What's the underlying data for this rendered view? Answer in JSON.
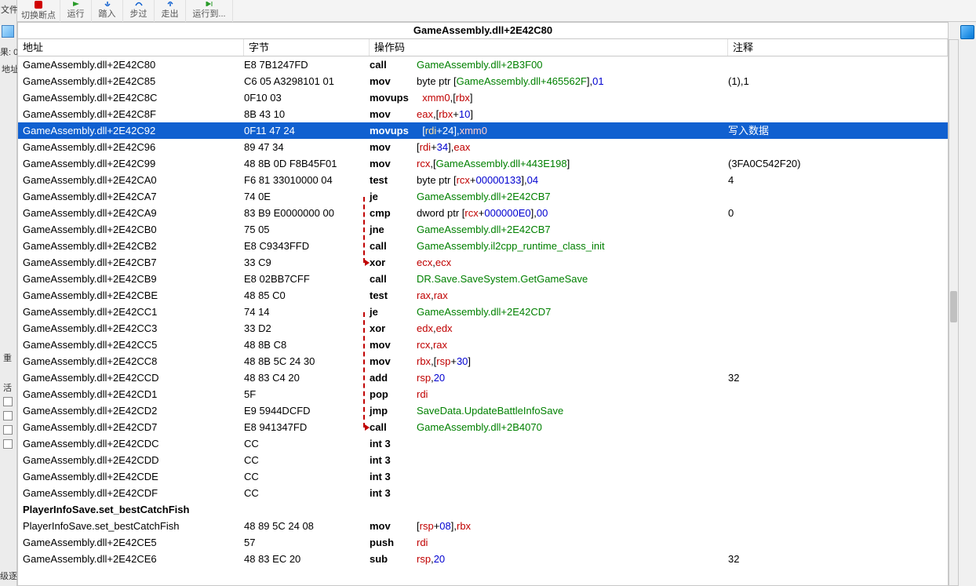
{
  "toolbar": {
    "file_label": "文件",
    "toggle_bp_label": "切换断点",
    "run_label": "运行",
    "step_into_label": "踏入",
    "step_over_label": "步过",
    "step_out_label": "走出",
    "run_to_label": "运行到..."
  },
  "left_strip": {
    "result_label": "果: 0",
    "addr_label": "地址",
    "chong_label": "重",
    "huo_label": "活",
    "ji_label": "级逐"
  },
  "title": "GameAssembly.dll+2E42C80",
  "headers": {
    "address": "地址",
    "bytes": "字节",
    "opcode": "操作码",
    "comment": "注释"
  },
  "col_widths": {
    "address": 288,
    "bytes": 160,
    "opcode": 60,
    "comment": 280
  },
  "selected_index": 4,
  "selected_comment": "写入数据",
  "colors": {
    "green": "#008000",
    "red": "#c00000",
    "blue": "#0000d0",
    "black": "#000000",
    "selection": "#1060d0"
  },
  "rows": [
    {
      "addr": "GameAssembly.dll+2E42C80",
      "bytes": "E8 7B1247FD",
      "op": "call",
      "operands": [
        {
          "t": "GameAssembly.dll+2B3F00",
          "c": "green"
        }
      ],
      "comment": ""
    },
    {
      "addr": "GameAssembly.dll+2E42C85",
      "bytes": "C6 05 A3298101 01",
      "op": "mov",
      "operands": [
        {
          "t": "byte ptr [",
          "c": "black"
        },
        {
          "t": "GameAssembly.dll+465562F",
          "c": "green"
        },
        {
          "t": "],",
          "c": "black"
        },
        {
          "t": "01",
          "c": "blue"
        }
      ],
      "comment": "(1),1"
    },
    {
      "addr": "GameAssembly.dll+2E42C8C",
      "bytes": "0F10 03",
      "op": "movups",
      "operands": [
        {
          "t": "  xmm0",
          "c": "red"
        },
        {
          "t": ",[",
          "c": "black"
        },
        {
          "t": "rbx",
          "c": "red"
        },
        {
          "t": "]",
          "c": "black"
        }
      ],
      "comment": ""
    },
    {
      "addr": "GameAssembly.dll+2E42C8F",
      "bytes": "8B 43 10",
      "op": "mov",
      "operands": [
        {
          "t": "eax",
          "c": "red"
        },
        {
          "t": ",[",
          "c": "black"
        },
        {
          "t": "rbx",
          "c": "red"
        },
        {
          "t": "+",
          "c": "black"
        },
        {
          "t": "10",
          "c": "blue"
        },
        {
          "t": "]",
          "c": "black"
        }
      ],
      "comment": ""
    },
    {
      "addr": "GameAssembly.dll+2E42C92",
      "bytes": "0F11 47 24",
      "op": "movups",
      "operands": [
        {
          "t": "  [",
          "c": "black"
        },
        {
          "t": "rdi",
          "c": "red"
        },
        {
          "t": "+",
          "c": "black"
        },
        {
          "t": "24",
          "c": "blue"
        },
        {
          "t": "],",
          "c": "black"
        },
        {
          "t": "xmm0",
          "c": "sel2"
        }
      ],
      "comment": "写入数据"
    },
    {
      "addr": "GameAssembly.dll+2E42C96",
      "bytes": "89 47 34",
      "op": "mov",
      "operands": [
        {
          "t": "[",
          "c": "black"
        },
        {
          "t": "rdi",
          "c": "red"
        },
        {
          "t": "+",
          "c": "black"
        },
        {
          "t": "34",
          "c": "blue"
        },
        {
          "t": "],",
          "c": "black"
        },
        {
          "t": "eax",
          "c": "red"
        }
      ],
      "comment": ""
    },
    {
      "addr": "GameAssembly.dll+2E42C99",
      "bytes": "48 8B 0D F8B45F01",
      "op": "mov",
      "operands": [
        {
          "t": "rcx",
          "c": "red"
        },
        {
          "t": ",[",
          "c": "black"
        },
        {
          "t": "GameAssembly.dll+443E198",
          "c": "green"
        },
        {
          "t": "]",
          "c": "black"
        }
      ],
      "comment": "(3FA0C542F20)"
    },
    {
      "addr": "GameAssembly.dll+2E42CA0",
      "bytes": "F6 81 33010000 04",
      "op": "test",
      "operands": [
        {
          "t": "byte ptr [",
          "c": "black"
        },
        {
          "t": "rcx",
          "c": "red"
        },
        {
          "t": "+",
          "c": "black"
        },
        {
          "t": "00000133",
          "c": "blue"
        },
        {
          "t": "],",
          "c": "black"
        },
        {
          "t": "04",
          "c": "blue"
        }
      ],
      "comment": "4"
    },
    {
      "addr": "GameAssembly.dll+2E42CA7",
      "bytes": "74 0E",
      "op": "je",
      "operands": [
        {
          "t": "GameAssembly.dll+2E42CB7",
          "c": "green"
        }
      ],
      "comment": ""
    },
    {
      "addr": "GameAssembly.dll+2E42CA9",
      "bytes": "83 B9 E0000000 00",
      "op": "cmp",
      "operands": [
        {
          "t": "dword ptr [",
          "c": "black"
        },
        {
          "t": "rcx",
          "c": "red"
        },
        {
          "t": "+",
          "c": "black"
        },
        {
          "t": "000000E0",
          "c": "blue"
        },
        {
          "t": "],",
          "c": "black"
        },
        {
          "t": "00",
          "c": "blue"
        }
      ],
      "comment": "0"
    },
    {
      "addr": "GameAssembly.dll+2E42CB0",
      "bytes": "75 05",
      "op": "jne",
      "operands": [
        {
          "t": "GameAssembly.dll+2E42CB7",
          "c": "green"
        }
      ],
      "comment": ""
    },
    {
      "addr": "GameAssembly.dll+2E42CB2",
      "bytes": "E8 C9343FFD",
      "op": "call",
      "operands": [
        {
          "t": "GameAssembly.il2cpp_runtime_class_init",
          "c": "green"
        }
      ],
      "comment": ""
    },
    {
      "addr": "GameAssembly.dll+2E42CB7",
      "bytes": "33 C9",
      "op": "xor",
      "operands": [
        {
          "t": "ecx",
          "c": "red"
        },
        {
          "t": ",",
          "c": "black"
        },
        {
          "t": "ecx",
          "c": "red"
        }
      ],
      "comment": ""
    },
    {
      "addr": "GameAssembly.dll+2E42CB9",
      "bytes": "E8 02BB7CFF",
      "op": "call",
      "operands": [
        {
          "t": "DR.Save.SaveSystem.GetGameSave",
          "c": "green"
        }
      ],
      "comment": ""
    },
    {
      "addr": "GameAssembly.dll+2E42CBE",
      "bytes": "48 85 C0",
      "op": "test",
      "operands": [
        {
          "t": "rax",
          "c": "red"
        },
        {
          "t": ",",
          "c": "black"
        },
        {
          "t": "rax",
          "c": "red"
        }
      ],
      "comment": ""
    },
    {
      "addr": "GameAssembly.dll+2E42CC1",
      "bytes": "74 14",
      "op": "je",
      "operands": [
        {
          "t": "GameAssembly.dll+2E42CD7",
          "c": "green"
        }
      ],
      "comment": ""
    },
    {
      "addr": "GameAssembly.dll+2E42CC3",
      "bytes": "33 D2",
      "op": "xor",
      "operands": [
        {
          "t": "edx",
          "c": "red"
        },
        {
          "t": ",",
          "c": "black"
        },
        {
          "t": "edx",
          "c": "red"
        }
      ],
      "comment": ""
    },
    {
      "addr": "GameAssembly.dll+2E42CC5",
      "bytes": "48 8B C8",
      "op": "mov",
      "operands": [
        {
          "t": "rcx",
          "c": "red"
        },
        {
          "t": ",",
          "c": "black"
        },
        {
          "t": "rax",
          "c": "red"
        }
      ],
      "comment": ""
    },
    {
      "addr": "GameAssembly.dll+2E42CC8",
      "bytes": "48 8B 5C 24 30",
      "op": "mov",
      "operands": [
        {
          "t": "rbx",
          "c": "red"
        },
        {
          "t": ",[",
          "c": "black"
        },
        {
          "t": "rsp",
          "c": "red"
        },
        {
          "t": "+",
          "c": "black"
        },
        {
          "t": "30",
          "c": "blue"
        },
        {
          "t": "]",
          "c": "black"
        }
      ],
      "comment": ""
    },
    {
      "addr": "GameAssembly.dll+2E42CCD",
      "bytes": "48 83 C4 20",
      "op": "add",
      "operands": [
        {
          "t": "rsp",
          "c": "red"
        },
        {
          "t": ",",
          "c": "black"
        },
        {
          "t": "20",
          "c": "blue"
        }
      ],
      "comment": "32"
    },
    {
      "addr": "GameAssembly.dll+2E42CD1",
      "bytes": "5F",
      "op": "pop",
      "operands": [
        {
          "t": "rdi",
          "c": "red"
        }
      ],
      "comment": ""
    },
    {
      "addr": "GameAssembly.dll+2E42CD2",
      "bytes": "E9 5944DCFD",
      "op": "jmp",
      "operands": [
        {
          "t": "SaveData.UpdateBattleInfoSave",
          "c": "green"
        }
      ],
      "comment": ""
    },
    {
      "addr": "GameAssembly.dll+2E42CD7",
      "bytes": "E8 941347FD",
      "op": "call",
      "operands": [
        {
          "t": "GameAssembly.dll+2B4070",
          "c": "green"
        }
      ],
      "comment": ""
    },
    {
      "addr": "GameAssembly.dll+2E42CDC",
      "bytes": "CC",
      "op": "int 3",
      "operands": [],
      "comment": ""
    },
    {
      "addr": "GameAssembly.dll+2E42CDD",
      "bytes": "CC",
      "op": "int 3",
      "operands": [],
      "comment": ""
    },
    {
      "addr": "GameAssembly.dll+2E42CDE",
      "bytes": "CC",
      "op": "int 3",
      "operands": [],
      "comment": ""
    },
    {
      "addr": "GameAssembly.dll+2E42CDF",
      "bytes": "CC",
      "op": "int 3",
      "operands": [],
      "comment": ""
    }
  ],
  "section": {
    "label": "PlayerInfoSave.set_bestCatchFish"
  },
  "rows2": [
    {
      "addr": "PlayerInfoSave.set_bestCatchFish",
      "bytes": "48 89 5C 24 08",
      "op": "mov",
      "operands": [
        {
          "t": "[",
          "c": "black"
        },
        {
          "t": "rsp",
          "c": "red"
        },
        {
          "t": "+",
          "c": "black"
        },
        {
          "t": "08",
          "c": "blue"
        },
        {
          "t": "],",
          "c": "black"
        },
        {
          "t": "rbx",
          "c": "red"
        }
      ],
      "comment": ""
    },
    {
      "addr": "GameAssembly.dll+2E42CE5",
      "bytes": "57",
      "op": "push",
      "operands": [
        {
          "t": "rdi",
          "c": "red"
        }
      ],
      "comment": ""
    },
    {
      "addr": "GameAssembly.dll+2E42CE6",
      "bytes": "48 83 EC 20",
      "op": "sub",
      "operands": [
        {
          "t": "rsp",
          "c": "red"
        },
        {
          "t": ",",
          "c": "black"
        },
        {
          "t": "20",
          "c": "blue"
        }
      ],
      "comment": "32"
    }
  ],
  "jump_lines": [
    {
      "from_row": 8,
      "to_row": 12,
      "arrow_at": 12
    },
    {
      "from_row": 15,
      "to_row": 22,
      "arrow_at": 22
    }
  ]
}
